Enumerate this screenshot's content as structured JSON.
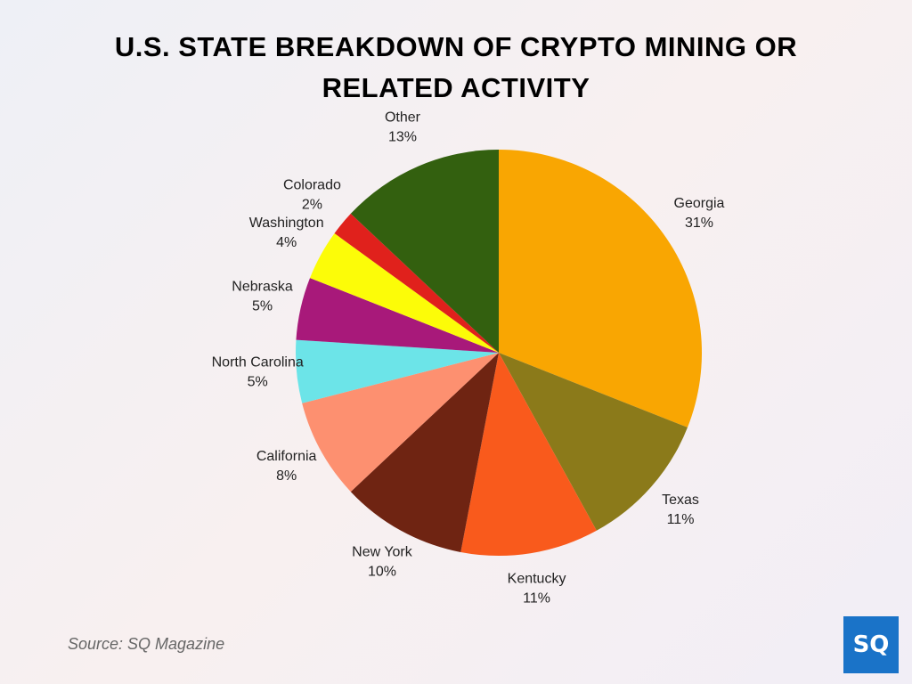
{
  "chart_data": {
    "type": "pie",
    "title": "U.S. STATE BREAKDOWN OF CRYPTO MINING OR RELATED ACTIVITY",
    "categories": [
      "Georgia",
      "Texas",
      "Kentucky",
      "New York",
      "California",
      "North Carolina",
      "Nebraska",
      "Washington",
      "Colorado",
      "Other"
    ],
    "values": [
      31,
      11,
      11,
      10,
      8,
      5,
      5,
      4,
      2,
      13
    ],
    "value_labels": [
      "31%",
      "11%",
      "11%",
      "10%",
      "8%",
      "5%",
      "5%",
      "4%",
      "2%",
      "13%"
    ],
    "colors": [
      "#f9a602",
      "#8b7a1a",
      "#f95a1c",
      "#6f2412",
      "#fd9070",
      "#6ce4e8",
      "#a8197a",
      "#fcfc08",
      "#e0211c",
      "#33600f"
    ],
    "source": "Source: SQ Magazine"
  },
  "logo": "SQ"
}
